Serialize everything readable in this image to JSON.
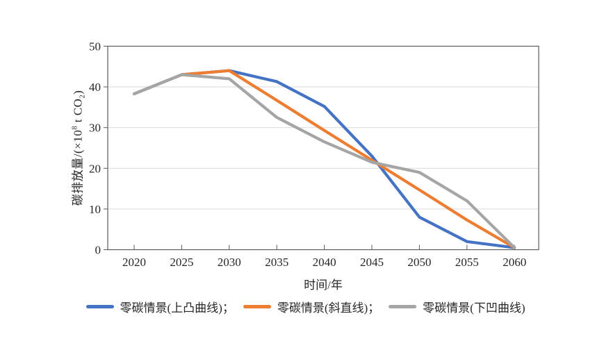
{
  "chart_data": {
    "type": "line",
    "title": "",
    "x": [
      2020,
      2025,
      2030,
      2035,
      2040,
      2045,
      2050,
      2055,
      2060
    ],
    "xlabel": "时间/年",
    "ylabel": "碳排放量/(×10⁸ t CO₂)",
    "ylabel_parts": {
      "pre": "碳排放量/(×10",
      "sup": "8",
      "mid": " t CO",
      "sub": "2",
      "post": ")"
    },
    "ylim": [
      0,
      50
    ],
    "yticks": [
      0,
      10,
      20,
      30,
      40,
      50
    ],
    "grid": "horizontal",
    "legend_position": "bottom",
    "axis_color": "#595959",
    "gridline_color": "#d9d9d9",
    "text_color": "#262626",
    "series": [
      {
        "name": "零碳情景(上凸曲线)",
        "legend_label": "零碳情景(上凸曲线)；",
        "color": "#4472C4",
        "values": [
          38.3,
          43,
          44,
          41.3,
          35.2,
          23,
          8,
          2,
          0.5
        ]
      },
      {
        "name": "零碳情景(斜直线)",
        "legend_label": "零碳情景(斜直线)；",
        "color": "#ED7D31",
        "values": [
          38.3,
          43,
          44,
          36.7,
          29.3,
          22,
          14.7,
          7.3,
          0.5
        ]
      },
      {
        "name": "零碳情景(下凹曲线)",
        "legend_label": "零碳情景(下凹曲线)",
        "color": "#A5A5A5",
        "values": [
          38.3,
          43,
          42,
          32.5,
          26.5,
          21.5,
          19,
          12,
          0.5
        ]
      }
    ]
  }
}
